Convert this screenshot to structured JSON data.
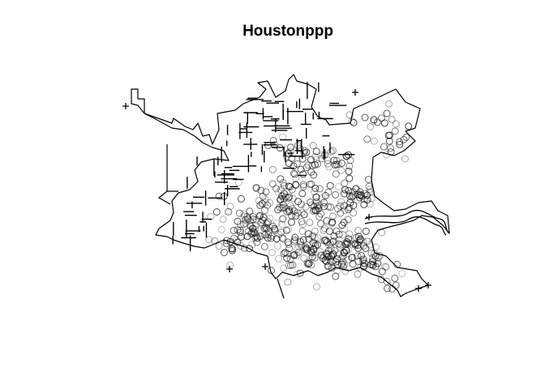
{
  "title": "Houstonppp",
  "colors": {
    "boundary": "#000000",
    "points": "#000000",
    "background": "#ffffff"
  },
  "legend": null
}
